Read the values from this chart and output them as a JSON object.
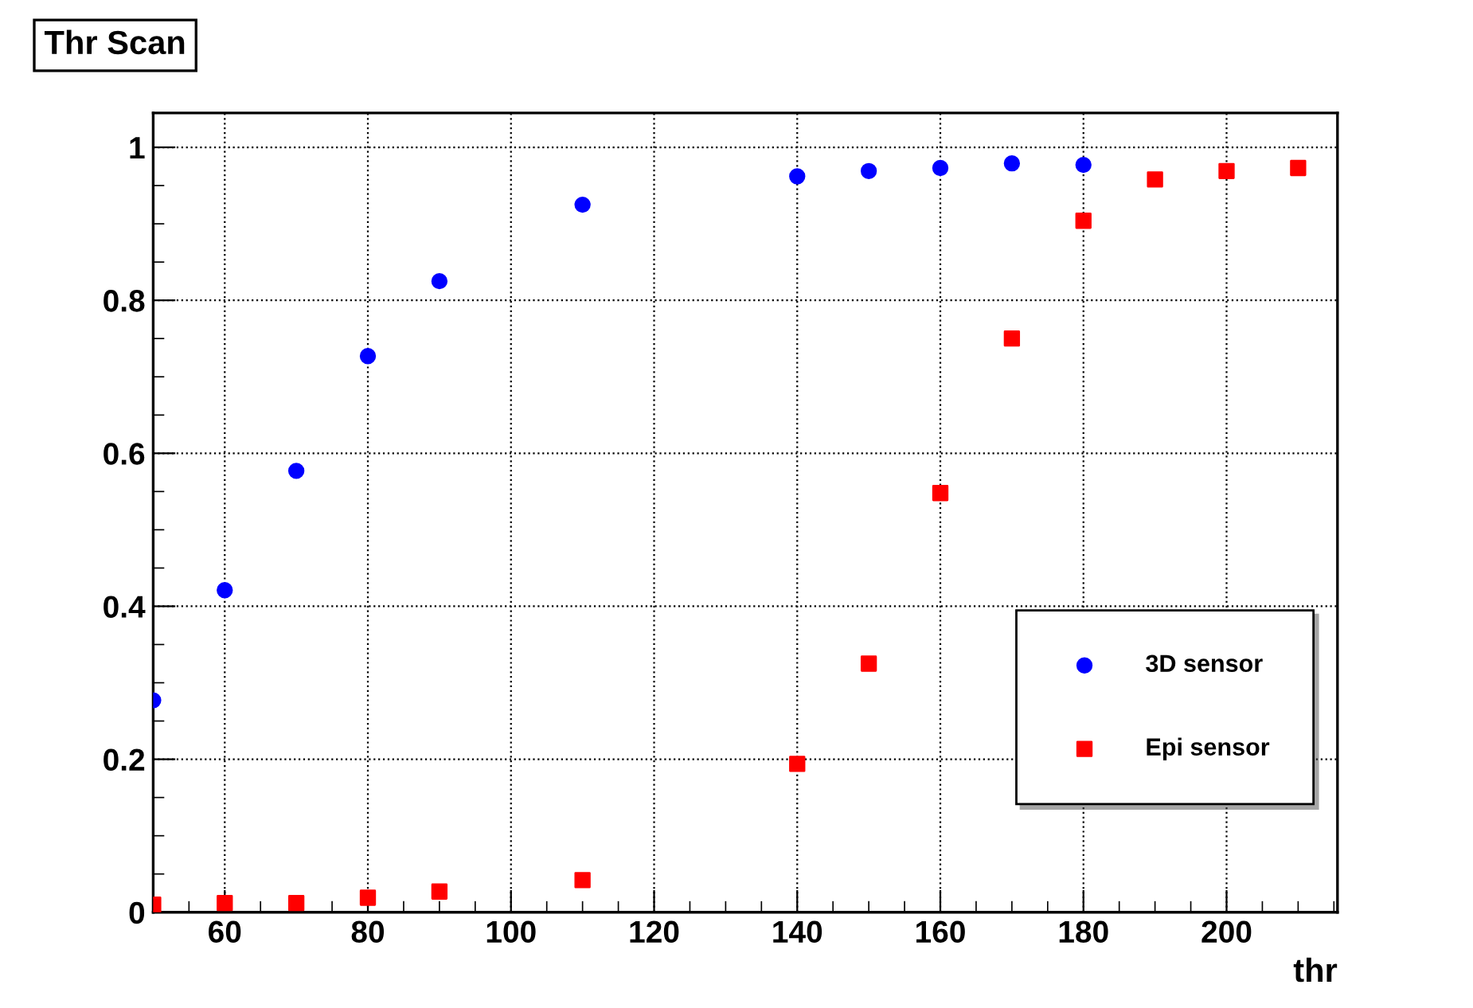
{
  "chart_data": {
    "type": "scatter",
    "title": "Thr Scan",
    "xlabel": "thr",
    "xlim": [
      50,
      215.5
    ],
    "ylim": [
      0,
      1.045
    ],
    "xticks": [
      60,
      80,
      100,
      120,
      140,
      160,
      180,
      200
    ],
    "yticks": [
      0,
      0.2,
      0.4,
      0.6,
      0.8,
      1
    ],
    "grid": true,
    "legend": "bottom right",
    "series": [
      {
        "name": "3D sensor",
        "color": "#0000ff",
        "marker": "circle",
        "x": [
          50,
          60,
          70,
          80,
          90,
          110,
          140,
          150,
          160,
          170,
          180
        ],
        "values": [
          0.277,
          0.421,
          0.577,
          0.727,
          0.825,
          0.925,
          0.962,
          0.969,
          0.973,
          0.979,
          0.977
        ]
      },
      {
        "name": "Epi sensor",
        "color": "#ff0000",
        "marker": "square",
        "x": [
          50,
          60,
          70,
          80,
          90,
          110,
          140,
          150,
          160,
          170,
          180,
          190,
          200,
          210
        ],
        "values": [
          0.01,
          0.012,
          0.012,
          0.019,
          0.027,
          0.042,
          0.194,
          0.325,
          0.548,
          0.75,
          0.904,
          0.958,
          0.969,
          0.973
        ]
      }
    ]
  }
}
